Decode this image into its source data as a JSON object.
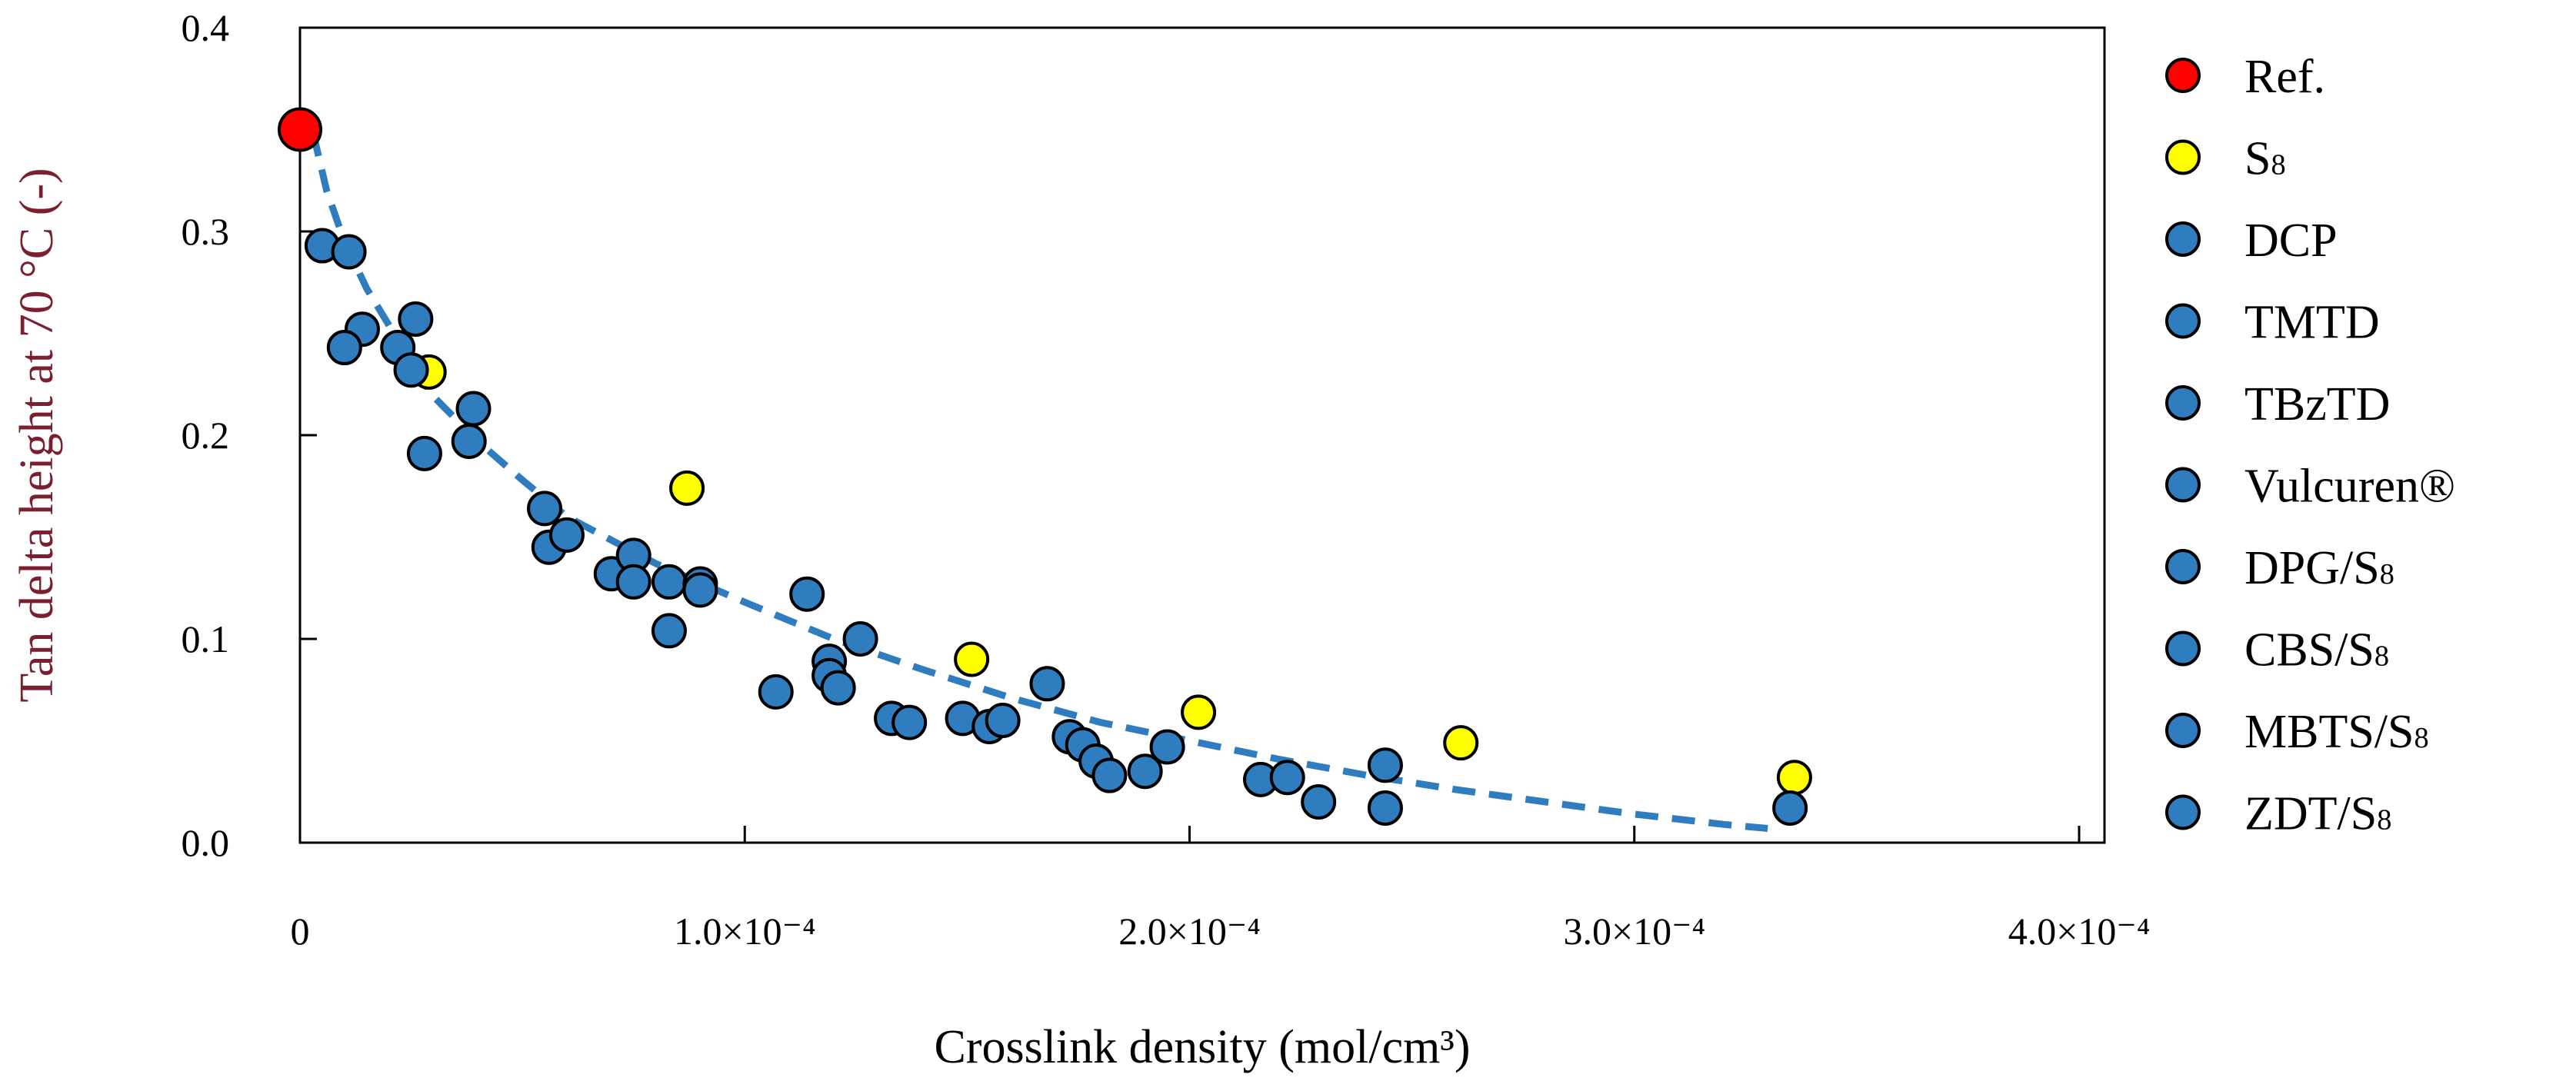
{
  "chart_data": {
    "type": "scatter",
    "xlabel": "Crosslink density (mol/cm³)",
    "ylabel": "Tan delta height at 70 °C (-)",
    "xlim": [
      0,
      0.0004
    ],
    "ylim": [
      0,
      0.4
    ],
    "grid": false,
    "legend_position": "right",
    "x_ticks": [
      {
        "value": 0,
        "label": "0"
      },
      {
        "value": 0.0001,
        "label": "1.0×10⁻⁴"
      },
      {
        "value": 0.0002,
        "label": "2.0×10⁻⁴"
      },
      {
        "value": 0.0003,
        "label": "3.0×10⁻⁴"
      },
      {
        "value": 0.0004,
        "label": "4.0×10⁻⁴"
      }
    ],
    "y_ticks": [
      {
        "value": 0.0,
        "label": "0.0"
      },
      {
        "value": 0.1,
        "label": "0.1"
      },
      {
        "value": 0.2,
        "label": "0.2"
      },
      {
        "value": 0.3,
        "label": "0.3"
      },
      {
        "value": 0.4,
        "label": "0.4"
      }
    ],
    "series": [
      {
        "name": "Ref.",
        "color": "#ff0000",
        "marker": "large-circle",
        "points": [
          [
            0.0,
            0.35
          ]
        ]
      },
      {
        "name": "S₈",
        "color": "#ffff00",
        "points": [
          [
            2.9e-05,
            0.231
          ],
          [
            8.7e-05,
            0.174
          ],
          [
            0.000151,
            0.09
          ],
          [
            0.000202,
            0.064
          ],
          [
            0.000261,
            0.049
          ],
          [
            0.000336,
            0.032
          ]
        ]
      },
      {
        "name": "DCP",
        "color": "#2f7dbe",
        "points": [
          [
            5e-06,
            0.293
          ],
          [
            1.1e-05,
            0.29
          ],
          [
            1.4e-05,
            0.252
          ],
          [
            1e-05,
            0.243
          ]
        ]
      },
      {
        "name": "TMTD",
        "color": "#2f7dbe",
        "points": [
          [
            2.2e-05,
            0.243
          ],
          [
            2.5e-05,
            0.232
          ],
          [
            2.6e-05,
            0.257
          ],
          [
            2.8e-05,
            0.191
          ]
        ]
      },
      {
        "name": "TBzTD",
        "color": "#2f7dbe",
        "points": [
          [
            3.9e-05,
            0.213
          ],
          [
            3.8e-05,
            0.197
          ],
          [
            5.5e-05,
            0.164
          ],
          [
            5.6e-05,
            0.145
          ]
        ]
      },
      {
        "name": "Vulcuren®",
        "color": "#2f7dbe",
        "points": [
          [
            6e-05,
            0.151
          ],
          [
            7e-05,
            0.132
          ],
          [
            7.5e-05,
            0.141
          ],
          [
            7.5e-05,
            0.128
          ],
          [
            8.3e-05,
            0.128
          ],
          [
            8.3e-05,
            0.104
          ]
        ]
      },
      {
        "name": "DPG/S₈",
        "color": "#2f7dbe",
        "points": [
          [
            9e-05,
            0.127
          ],
          [
            9e-05,
            0.124
          ],
          [
            0.000107,
            0.074
          ],
          [
            0.000114,
            0.122
          ],
          [
            0.000119,
            0.089
          ]
        ]
      },
      {
        "name": "CBS/S₈",
        "color": "#2f7dbe",
        "points": [
          [
            0.000119,
            0.082
          ],
          [
            0.000121,
            0.076
          ],
          [
            0.000126,
            0.1
          ],
          [
            0.000133,
            0.061
          ],
          [
            0.000137,
            0.059
          ],
          [
            0.000149,
            0.061
          ]
        ]
      },
      {
        "name": "MBTS/S₈",
        "color": "#2f7dbe",
        "points": [
          [
            0.000155,
            0.057
          ],
          [
            0.000158,
            0.06
          ],
          [
            0.000168,
            0.078
          ],
          [
            0.000173,
            0.052
          ],
          [
            0.000176,
            0.048
          ],
          [
            0.000179,
            0.04
          ],
          [
            0.000182,
            0.033
          ],
          [
            0.00019,
            0.035
          ],
          [
            0.000195,
            0.047
          ]
        ]
      },
      {
        "name": "ZDT/S₈",
        "color": "#2f7dbe",
        "points": [
          [
            0.000216,
            0.031
          ],
          [
            0.000222,
            0.032
          ],
          [
            0.000229,
            0.02
          ],
          [
            0.000244,
            0.038
          ],
          [
            0.000244,
            0.017
          ],
          [
            0.000335,
            0.017
          ]
        ]
      }
    ],
    "trend_line": {
      "style": "dashed",
      "color": "#2f7dbe",
      "points": [
        [
          3e-06,
          0.348
        ],
        [
          6e-06,
          0.32
        ],
        [
          1e-05,
          0.295
        ],
        [
          1.5e-05,
          0.272
        ],
        [
          2e-05,
          0.254
        ],
        [
          2.5e-05,
          0.235
        ],
        [
          3e-05,
          0.219
        ],
        [
          4e-05,
          0.197
        ],
        [
          5e-05,
          0.178
        ],
        [
          6e-05,
          0.16
        ],
        [
          8e-05,
          0.137
        ],
        [
          0.0001,
          0.118
        ],
        [
          0.00012,
          0.1
        ],
        [
          0.00014,
          0.085
        ],
        [
          0.00016,
          0.071
        ],
        [
          0.00018,
          0.059
        ],
        [
          0.0002,
          0.05
        ],
        [
          0.00022,
          0.041
        ],
        [
          0.00024,
          0.033
        ],
        [
          0.00026,
          0.026
        ],
        [
          0.00028,
          0.02
        ],
        [
          0.0003,
          0.014
        ],
        [
          0.00032,
          0.009
        ],
        [
          0.00033,
          0.007
        ]
      ]
    },
    "legend": [
      {
        "label": "Ref.",
        "color": "#ff0000"
      },
      {
        "label": "S",
        "sub": "8",
        "color": "#ffff00"
      },
      {
        "label": "DCP",
        "color": "#2f7dbe"
      },
      {
        "label": "TMTD",
        "color": "#2f7dbe"
      },
      {
        "label": "TBzTD",
        "color": "#2f7dbe"
      },
      {
        "label": "Vulcuren®",
        "color": "#2f7dbe"
      },
      {
        "label": "DPG/S",
        "sub": "8",
        "color": "#2f7dbe"
      },
      {
        "label": "CBS/S",
        "sub": "8",
        "color": "#2f7dbe"
      },
      {
        "label": "MBTS/S",
        "sub": "8",
        "color": "#2f7dbe"
      },
      {
        "label": "ZDT/S",
        "sub": "8",
        "color": "#2f7dbe"
      }
    ]
  }
}
